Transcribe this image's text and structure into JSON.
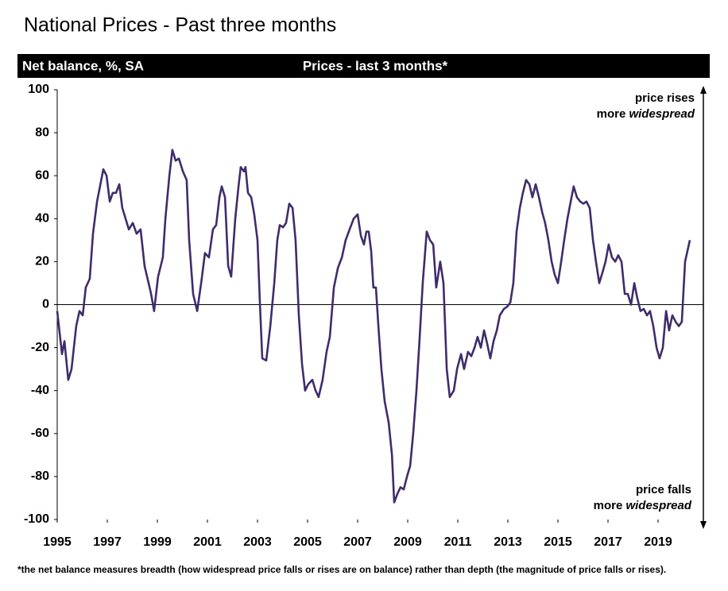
{
  "chart_data": {
    "type": "line",
    "title": "National Prices - Past three months",
    "header_left": "Net balance, %, SA",
    "header_center": "Prices - last 3 months*",
    "footnote": "*the net balance measures breadth (how widespread price falls or rises are on balance)  rather than depth (the magnitude of price falls or rises).",
    "top_annotation": {
      "line1": "price rises",
      "line2": "more",
      "line2_italic": "widespread"
    },
    "bottom_annotation": {
      "line1": "price falls",
      "line2": "more",
      "line2_italic": "widespread"
    },
    "xlim": [
      1995,
      2020.8
    ],
    "xticks": [
      1995,
      1997,
      1999,
      2001,
      2003,
      2005,
      2007,
      2009,
      2011,
      2013,
      2015,
      2017,
      2019
    ],
    "ylim": [
      -100,
      100
    ],
    "yticks": [
      -100,
      -80,
      -60,
      -40,
      -20,
      0,
      20,
      40,
      60,
      80,
      100
    ],
    "zero_line": true,
    "x": [
      1995.0,
      1995.19,
      1995.29,
      1995.44,
      1995.57,
      1995.76,
      1995.89,
      1996.02,
      1996.14,
      1996.3,
      1996.43,
      1996.59,
      1996.84,
      1996.97,
      1997.1,
      1997.22,
      1997.35,
      1997.48,
      1997.6,
      1997.73,
      1997.86,
      1998.02,
      1998.17,
      1998.33,
      1998.49,
      1998.65,
      1998.75,
      1998.87,
      1999.03,
      1999.22,
      1999.32,
      1999.48,
      1999.6,
      1999.73,
      1999.86,
      2000.02,
      2000.17,
      2000.27,
      2000.43,
      2000.59,
      2000.75,
      2000.9,
      2001.06,
      2001.22,
      2001.35,
      2001.48,
      2001.57,
      2001.7,
      2001.83,
      2001.95,
      2002.11,
      2002.24,
      2002.33,
      2002.46,
      2002.52,
      2002.62,
      2002.75,
      2002.87,
      2003.0,
      2003.1,
      2003.19,
      2003.35,
      2003.51,
      2003.67,
      2003.79,
      2003.89,
      2004.02,
      2004.14,
      2004.27,
      2004.4,
      2004.52,
      2004.65,
      2004.78,
      2004.9,
      2005.03,
      2005.19,
      2005.32,
      2005.44,
      2005.6,
      2005.76,
      2005.89,
      2006.05,
      2006.21,
      2006.37,
      2006.52,
      2006.68,
      2006.84,
      2007.0,
      2007.13,
      2007.25,
      2007.35,
      2007.44,
      2007.54,
      2007.63,
      2007.73,
      2007.83,
      2007.95,
      2008.08,
      2008.24,
      2008.37,
      2008.46,
      2008.59,
      2008.71,
      2008.84,
      2008.97,
      2009.1,
      2009.22,
      2009.35,
      2009.48,
      2009.6,
      2009.76,
      2009.89,
      2010.02,
      2010.14,
      2010.3,
      2010.43,
      2010.56,
      2010.68,
      2010.84,
      2010.97,
      2011.13,
      2011.25,
      2011.41,
      2011.54,
      2011.67,
      2011.79,
      2011.92,
      2012.05,
      2012.17,
      2012.3,
      2012.43,
      2012.56,
      2012.68,
      2012.84,
      2012.97,
      2013.1,
      2013.22,
      2013.35,
      2013.48,
      2013.6,
      2013.73,
      2013.86,
      2013.98,
      2014.11,
      2014.24,
      2014.37,
      2014.49,
      2014.62,
      2014.75,
      2014.87,
      2015.0,
      2015.13,
      2015.25,
      2015.38,
      2015.51,
      2015.63,
      2015.76,
      2015.89,
      2016.02,
      2016.14,
      2016.27,
      2016.4,
      2016.52,
      2016.65,
      2016.78,
      2016.9,
      2017.03,
      2017.16,
      2017.29,
      2017.41,
      2017.54,
      2017.67,
      2017.79,
      2017.92,
      2018.05,
      2018.17,
      2018.3,
      2018.43,
      2018.56,
      2018.68,
      2018.81,
      2018.94,
      2019.06,
      2019.19,
      2019.32,
      2019.44,
      2019.57,
      2019.7,
      2019.83,
      2019.95,
      2020.08,
      2020.27
    ],
    "series": [
      {
        "color": "#3f2d6b",
        "values": [
          -3,
          -23,
          -17,
          -35,
          -30,
          -10,
          -3,
          -5,
          8,
          12,
          33,
          48,
          63,
          60,
          48,
          52,
          52,
          56,
          45,
          40,
          35,
          38,
          33,
          35,
          18,
          10,
          5,
          -3,
          13,
          22,
          40,
          60,
          72,
          67,
          68,
          62,
          58,
          30,
          5,
          -3,
          10,
          24,
          22,
          35,
          37,
          50,
          55,
          50,
          18,
          13,
          40,
          55,
          64,
          62,
          64,
          52,
          50,
          42,
          30,
          0,
          -25,
          -26,
          -10,
          10,
          30,
          37,
          36,
          38,
          47,
          45,
          30,
          -5,
          -28,
          -40,
          -37,
          -35,
          -40,
          -43,
          -35,
          -22,
          -15,
          8,
          17,
          22,
          30,
          35,
          40,
          42,
          32,
          28,
          34,
          34,
          25,
          8,
          8,
          -10,
          -30,
          -45,
          -55,
          -70,
          -92,
          -88,
          -85,
          -86,
          -80,
          -75,
          -60,
          -40,
          -15,
          10,
          34,
          30,
          28,
          8,
          20,
          10,
          -30,
          -43,
          -40,
          -30,
          -23,
          -30,
          -22,
          -24,
          -20,
          -15,
          -20,
          -12,
          -18,
          -25,
          -17,
          -12,
          -5,
          -2,
          -1,
          1,
          10,
          34,
          45,
          52,
          58,
          56,
          50,
          56,
          50,
          43,
          38,
          30,
          20,
          14,
          10,
          20,
          30,
          40,
          48,
          55,
          50,
          48,
          47,
          48,
          45,
          30,
          20,
          10,
          15,
          20,
          28,
          22,
          20,
          23,
          20,
          5,
          5,
          0,
          10,
          3,
          -3,
          -2,
          -5,
          -3,
          -10,
          -20,
          -25,
          -20,
          -3,
          -12,
          -5,
          -8,
          -10,
          -8,
          20,
          30
        ]
      }
    ]
  }
}
